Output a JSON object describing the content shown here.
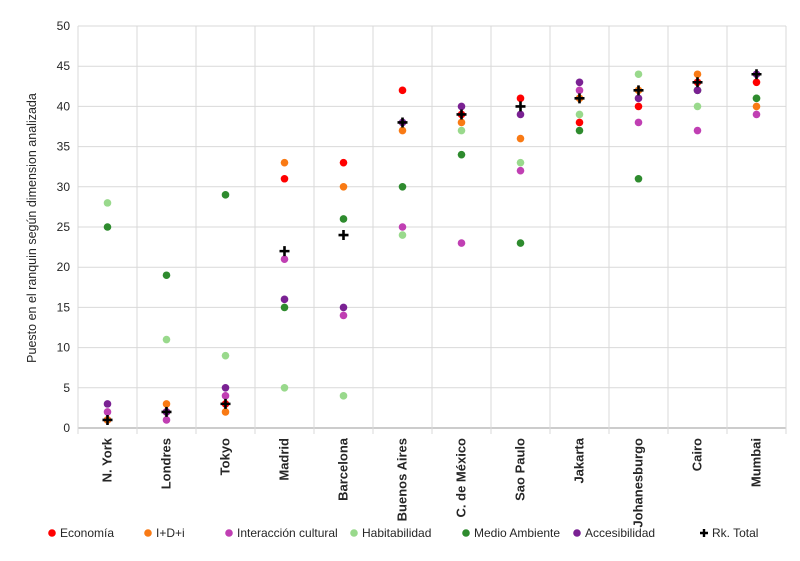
{
  "chart_data": {
    "type": "scatter",
    "ylabel": "Puesto en el ranquin según dimension analizada",
    "xlabel": "",
    "ylim": [
      0,
      50
    ],
    "yticks": [
      0,
      5,
      10,
      15,
      20,
      25,
      30,
      35,
      40,
      45,
      50
    ],
    "grid": "horizontal",
    "legend_position": "bottom",
    "categories": [
      "N. York",
      "Londres",
      "Tokyo",
      "Madrid",
      "Barcelona",
      "Buenos Aires",
      "C. de México",
      "Sao Paulo",
      "Jakarta",
      "Johanesburgo",
      "Cairo",
      "Mumbai"
    ],
    "series": [
      {
        "name": "Economía",
        "color": "#ff0000",
        "marker": "circle",
        "values": [
          1,
          2,
          3,
          31,
          33,
          42,
          39,
          41,
          38,
          40,
          43,
          43
        ]
      },
      {
        "name": "I+D+i",
        "color": "#f97a14",
        "marker": "circle",
        "values": [
          1,
          3,
          2,
          33,
          30,
          37,
          38,
          36,
          41,
          42,
          44,
          40
        ]
      },
      {
        "name": "Interacción cultural",
        "color": "#c03fb3",
        "marker": "circle",
        "values": [
          2,
          1,
          4,
          21,
          14,
          25,
          23,
          32,
          42,
          38,
          37,
          39
        ]
      },
      {
        "name": "Habitabilidad",
        "color": "#99d98c",
        "marker": "circle",
        "values": [
          28,
          11,
          9,
          5,
          4,
          24,
          37,
          33,
          39,
          44,
          40,
          41
        ]
      },
      {
        "name": "Medio Ambiente",
        "color": "#2e8b2e",
        "marker": "circle",
        "values": [
          25,
          19,
          29,
          15,
          26,
          30,
          34,
          23,
          37,
          31,
          42,
          41
        ]
      },
      {
        "name": "Accesibilidad",
        "color": "#7a2193",
        "marker": "circle",
        "values": [
          3,
          2,
          5,
          16,
          15,
          38,
          40,
          39,
          43,
          41,
          42,
          44
        ]
      },
      {
        "name": "Rk. Total",
        "color": "#000000",
        "marker": "plus",
        "values": [
          1,
          2,
          3,
          22,
          24,
          38,
          39,
          40,
          41,
          42,
          43,
          44
        ]
      }
    ]
  }
}
